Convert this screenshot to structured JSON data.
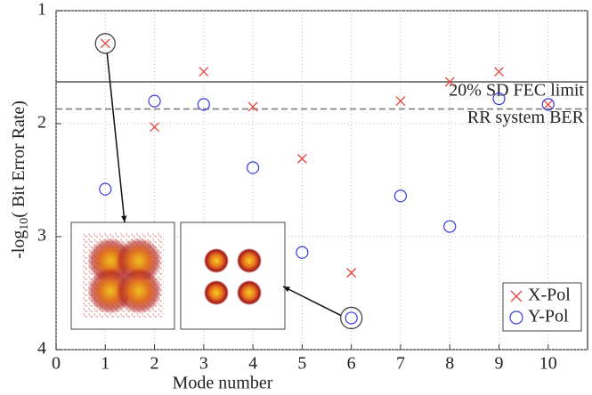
{
  "chart_data": {
    "type": "scatter",
    "xlabel": "Mode number",
    "ylabel": {
      "text": "-log",
      "subscript": "10",
      "suffix": "( Bit Error Rate)"
    },
    "x": [
      1,
      2,
      3,
      4,
      5,
      6,
      7,
      8,
      9,
      10
    ],
    "series": [
      {
        "name": "X-Pol",
        "color": "#e8453c",
        "marker": "x",
        "values": [
          1.29,
          2.03,
          1.54,
          1.85,
          2.31,
          3.32,
          1.8,
          1.63,
          1.54,
          1.83
        ]
      },
      {
        "name": "Y-Pol",
        "color": "#3a3ae0",
        "marker": "circle",
        "values": [
          2.58,
          1.8,
          1.83,
          2.39,
          3.14,
          3.72,
          2.64,
          2.91,
          1.78,
          1.83
        ]
      }
    ],
    "reference_lines": [
      {
        "value": 1.63,
        "label": "20% SD FEC limit",
        "style": "solid"
      },
      {
        "value": 1.87,
        "label": "RR system BER",
        "style": "dashed"
      }
    ],
    "xlim": [
      0,
      10.8
    ],
    "xticks": [
      0,
      1,
      2,
      3,
      4,
      5,
      6,
      7,
      8,
      9,
      10
    ],
    "ylim": [
      1,
      4
    ],
    "yticks": [
      1,
      2,
      3,
      4
    ],
    "y_inverted": true,
    "grid": true,
    "legend": "lower right"
  }
}
